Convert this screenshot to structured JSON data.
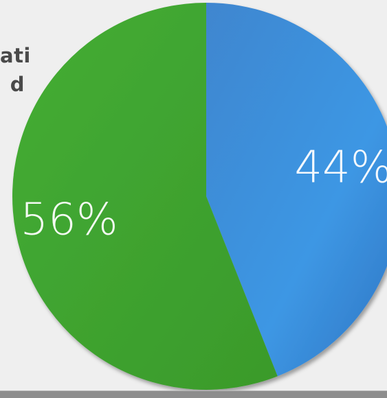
{
  "partial_text": {
    "line1": "ati",
    "line2": "d"
  },
  "colors": {
    "background": "#efefef",
    "slice_blue": "#3a8fdc",
    "slice_green": "#42a832",
    "label": "#ffffff"
  },
  "chart_data": {
    "type": "pie",
    "title": "",
    "slices": [
      {
        "label": "44%",
        "value": 44,
        "color": "#3a8fdc"
      },
      {
        "label": "56%",
        "value": 56,
        "color": "#42a832"
      }
    ],
    "legend": "none"
  }
}
